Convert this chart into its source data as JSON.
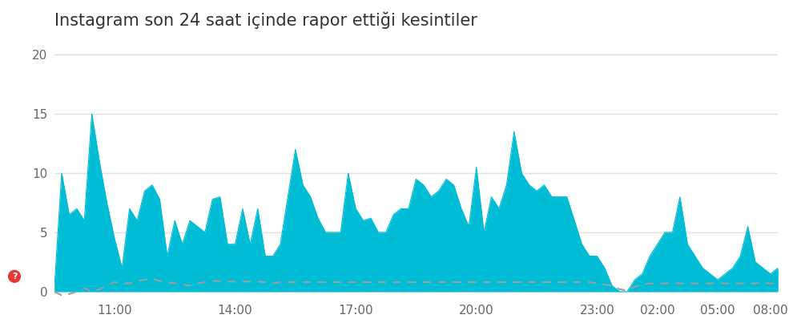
{
  "title": "Instagram son 24 saat içinde rapor ettiği kesintiler",
  "title_fontsize": 15,
  "background_color": "#ffffff",
  "area_color": "#00BCD4",
  "dashed_line_color": "#9E9E9E",
  "yticks": [
    0,
    5,
    10,
    15,
    20
  ],
  "xtick_labels": [
    "11:00",
    "14:00",
    "17:00",
    "20:00",
    "23:00",
    "02:00",
    "05:00",
    "08:00"
  ],
  "ylim": [
    -0.5,
    21
  ],
  "grid_color": "#E0E0E0",
  "y_area": [
    0,
    10,
    6.5,
    7,
    6,
    15,
    11,
    7.5,
    4.5,
    2,
    7,
    6,
    8.5,
    9,
    7.8,
    3,
    6,
    4,
    6,
    5.5,
    5,
    7.8,
    8,
    4,
    4,
    7,
    4,
    7,
    3,
    3,
    4,
    8,
    12,
    9,
    8,
    6.2,
    5,
    5,
    5,
    10,
    7,
    6,
    6.2,
    5,
    5,
    6.5,
    7,
    7,
    9.5,
    9,
    8,
    8.5,
    9.5,
    9,
    7,
    5.5,
    10.5,
    5,
    8,
    7,
    9,
    13.5,
    10,
    9,
    8.5,
    9,
    8,
    8,
    8,
    6,
    4,
    3,
    3,
    2,
    0.5,
    0,
    0,
    1,
    1.5,
    3,
    4,
    5,
    5,
    8,
    4,
    3,
    2,
    1.5,
    1,
    1.5,
    2,
    3,
    5.5,
    2.5,
    2,
    1.5,
    2
  ],
  "y_dashed": [
    0,
    -0.3,
    -0.2,
    0,
    0.3,
    0,
    0.2,
    0.5,
    0.8,
    0.7,
    0.7,
    0.9,
    1,
    1.1,
    0.9,
    0.8,
    0.7,
    0.6,
    0.5,
    0.7,
    0.8,
    0.9,
    0.9,
    0.85,
    0.85,
    0.85,
    0.85,
    0.85,
    0.8,
    0.7,
    0.8,
    0.8,
    0.8,
    0.8,
    0.8,
    0.8,
    0.8,
    0.8,
    0.8,
    0.8,
    0.8,
    0.8,
    0.8,
    0.8,
    0.8,
    0.8,
    0.8,
    0.8,
    0.8,
    0.8,
    0.8,
    0.8,
    0.8,
    0.8,
    0.8,
    0.8,
    0.8,
    0.8,
    0.8,
    0.8,
    0.8,
    0.8,
    0.8,
    0.8,
    0.8,
    0.8,
    0.8,
    0.8,
    0.8,
    0.8,
    0.8,
    0.8,
    0.7,
    0.6,
    0.5,
    0.2,
    0.1,
    0.4,
    0.6,
    0.7,
    0.7,
    0.7,
    0.7,
    0.7,
    0.7,
    0.7,
    0.7,
    0.7,
    0.7,
    0.7,
    0.7,
    0.7,
    0.7,
    0.7,
    0.7,
    0.7,
    0.7
  ],
  "xtick_positions_idx": [
    8,
    24,
    40,
    56,
    72,
    80,
    88,
    95
  ]
}
